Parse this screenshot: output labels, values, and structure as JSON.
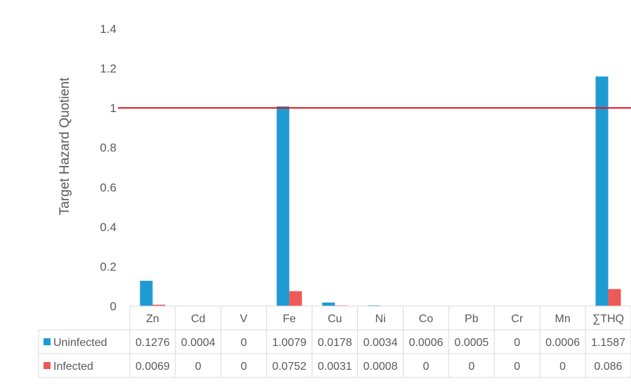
{
  "chart_data": {
    "type": "bar",
    "ylabel": "Target Hazard Quotient",
    "ylim": [
      0,
      1.4
    ],
    "yticks": [
      "0",
      "0.2",
      "0.4",
      "0.6",
      "0.8",
      "1",
      "1.2",
      "1.4"
    ],
    "categories": [
      "Zn",
      "Cd",
      "V",
      "Fe",
      "Cu",
      "Ni",
      "Co",
      "Pb",
      "Cr",
      "Mn",
      "∑THQ"
    ],
    "series": [
      {
        "name": "Uninfected",
        "color": "#1f9bd3",
        "values": [
          0.1276,
          0.0004,
          0,
          1.0079,
          0.0178,
          0.0034,
          0.0006,
          0.0005,
          0,
          0.0006,
          1.1587
        ],
        "labels": [
          "0.1276",
          "0.0004",
          "0",
          "1.0079",
          "0.0178",
          "0.0034",
          "0.0006",
          "0.0005",
          "0",
          "0.0006",
          "1.1587"
        ]
      },
      {
        "name": "Infected",
        "color": "#ee5a55",
        "values": [
          0.0069,
          0,
          0,
          0.0752,
          0.0031,
          0.0008,
          0,
          0,
          0,
          0,
          0.086
        ],
        "labels": [
          "0.0069",
          "0",
          "0",
          "0.0752",
          "0.0031",
          "0.0008",
          "0",
          "0",
          "0",
          "0",
          "0.086"
        ]
      }
    ],
    "reference_line": {
      "value": 1,
      "color": "#e5141b"
    },
    "grid": false,
    "legend": "data-table"
  }
}
